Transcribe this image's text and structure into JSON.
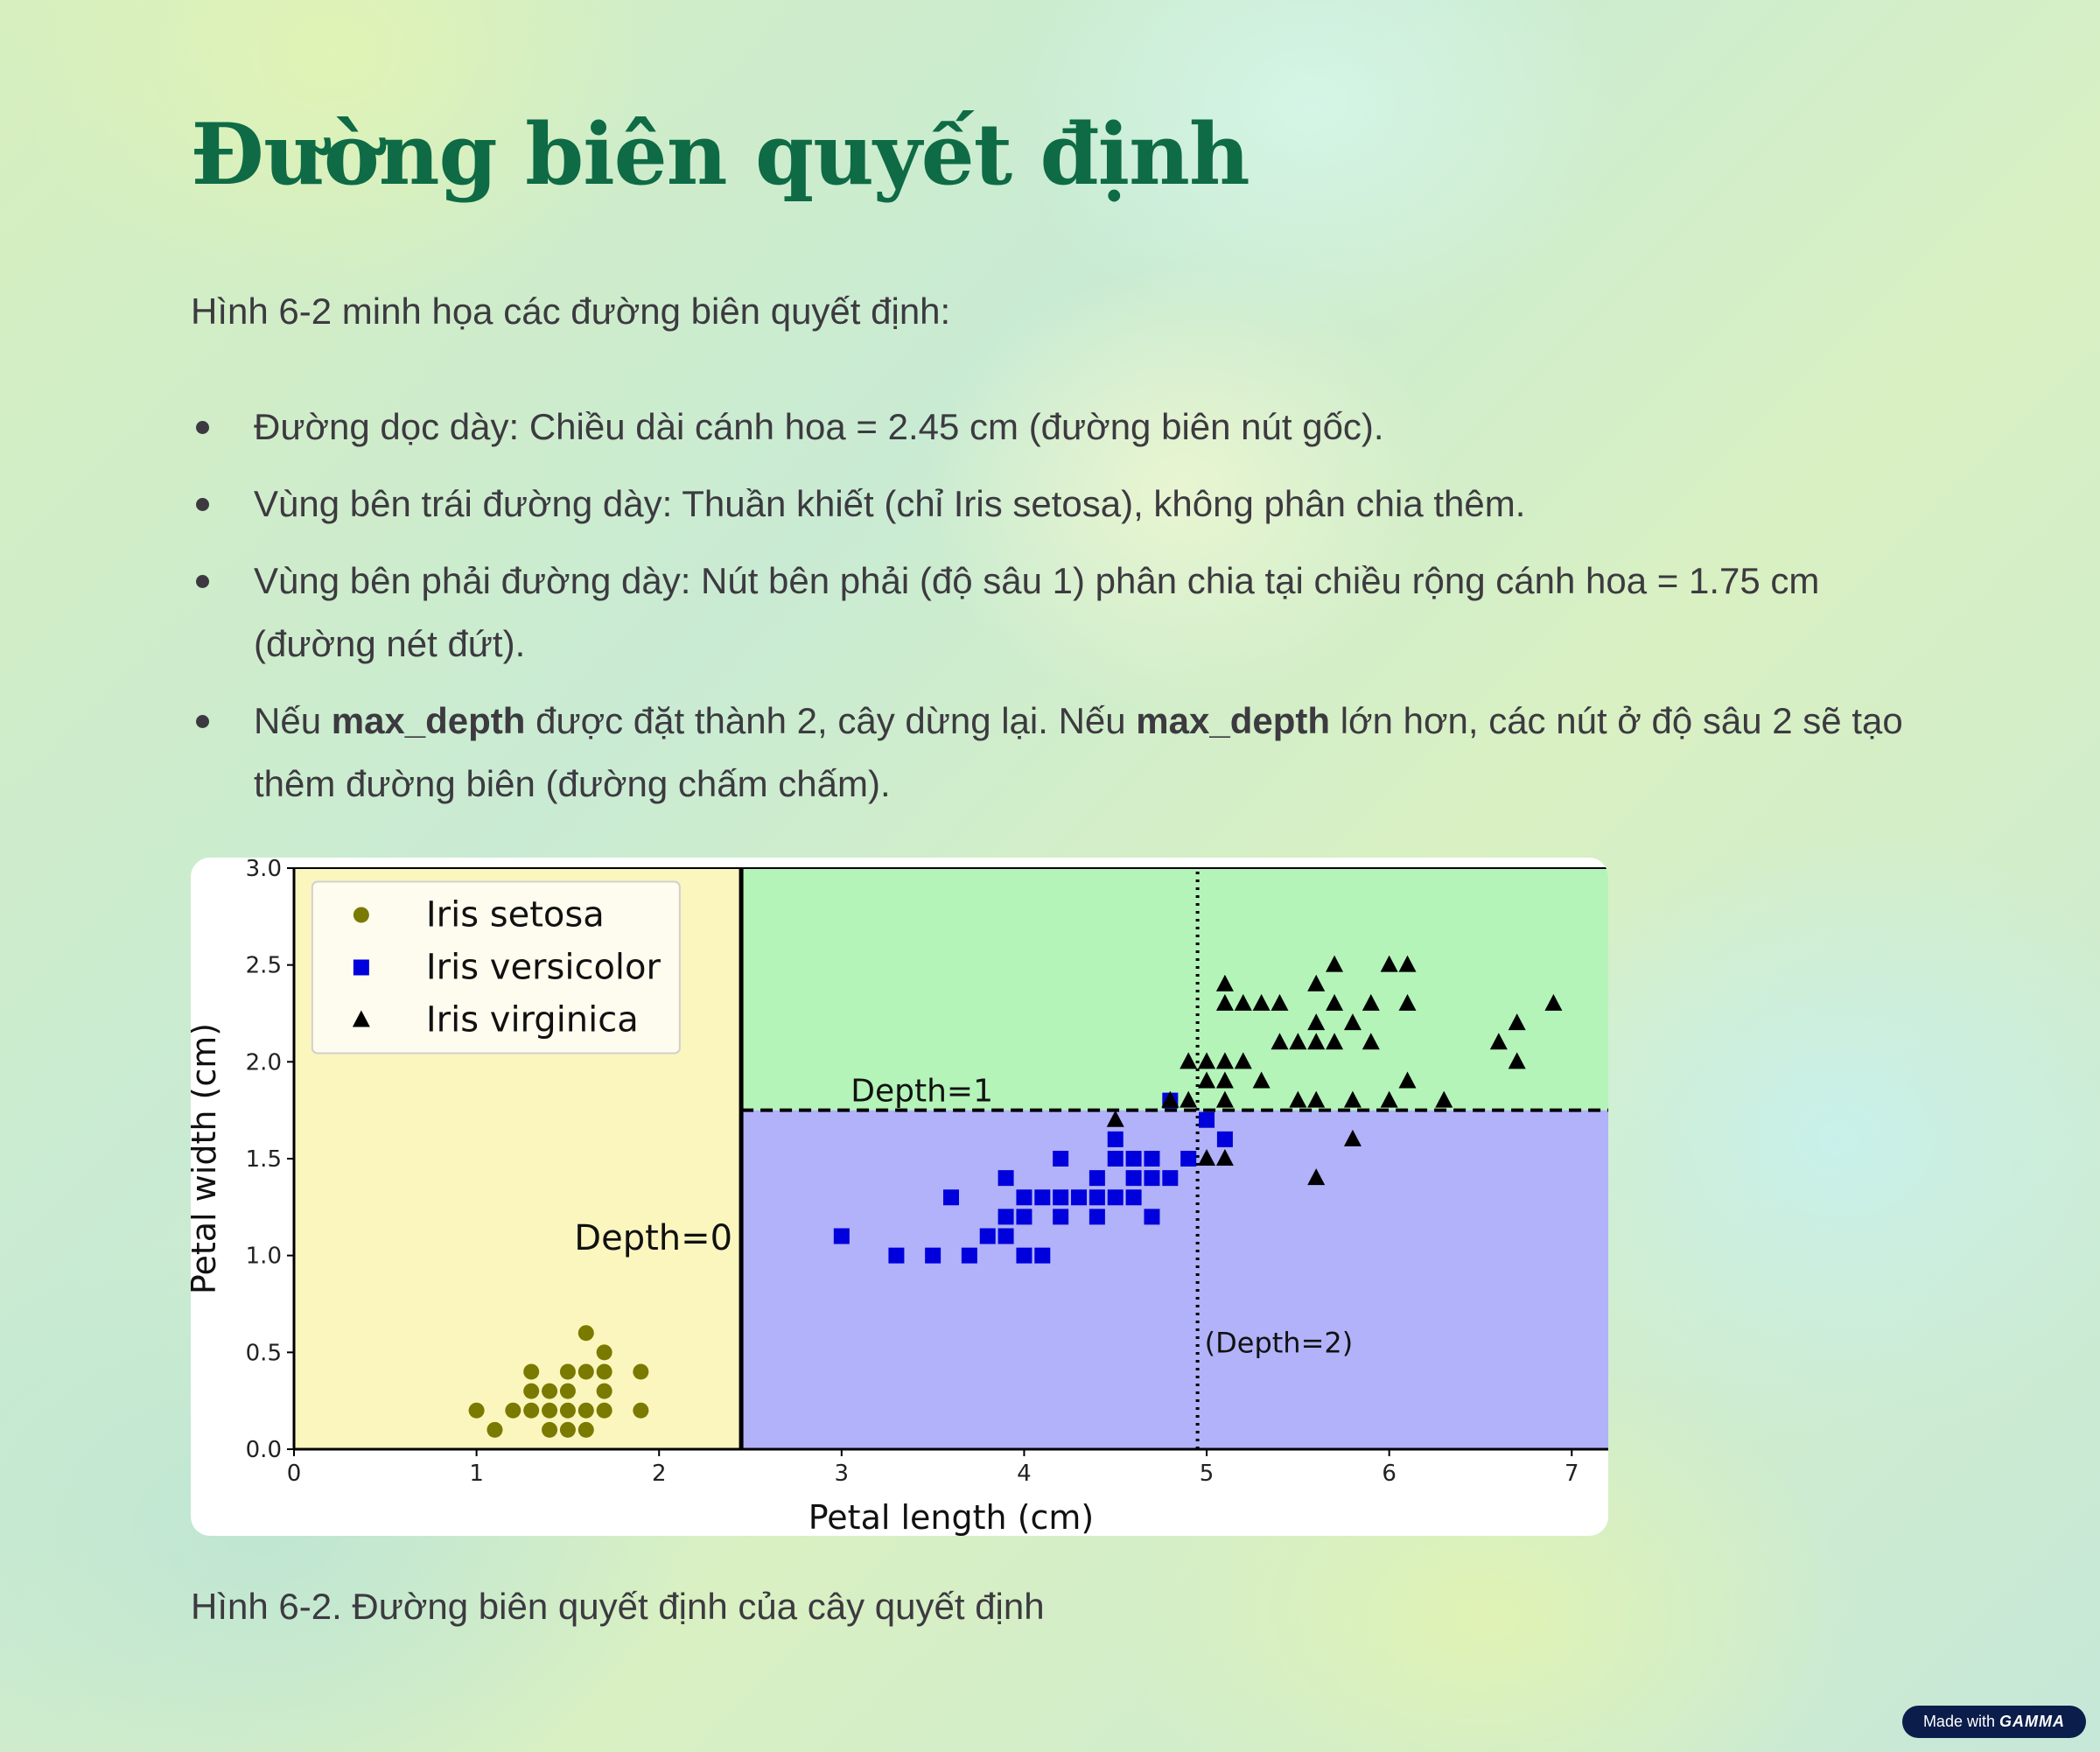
{
  "page": {
    "title": "Đường biên quyết định",
    "intro": "Hình 6-2 minh họa các đường biên quyết định:",
    "bullets": {
      "b1": "Đường dọc dày: Chiều dài cánh hoa = 2.45 cm (đường biên nút gốc).",
      "b2": "Vùng bên trái đường dày: Thuần khiết (chỉ Iris setosa), không phân chia thêm.",
      "b3": "Vùng bên phải đường dày: Nút bên phải (độ sâu 1) phân chia tại chiều rộng cánh hoa = 1.75 cm (đường nét đứt).",
      "b4_p1": "Nếu ",
      "b4_b1": "max_depth",
      "b4_p2": " được đặt thành 2, cây dừng lại. Nếu ",
      "b4_b2": "max_depth",
      "b4_p3": " lớn hơn, các nút ở độ sâu 2 sẽ tạo thêm đường biên (đường chấm chấm)."
    },
    "caption": "Hình 6-2. Đường biên quyết định của cây quyết định",
    "badge": {
      "prefix": "Made with",
      "brand": "GAMMA"
    }
  },
  "colors": {
    "title": "#0e6b45",
    "text": "#3c3a40",
    "region_setosa": "#fbf6be",
    "region_virginica": "#b4f4b9",
    "region_versicolor": "#b1b2f9",
    "setosa": "#7a7a00",
    "versicolor": "#0000dd",
    "virginica": "#000000"
  },
  "chart_data": {
    "type": "scatter",
    "xlabel": "Petal length (cm)",
    "ylabel": "Petal width (cm)",
    "xlim": [
      0,
      7.2
    ],
    "ylim": [
      0,
      3
    ],
    "xticks": [
      "0",
      "1",
      "2",
      "3",
      "4",
      "5",
      "6",
      "7"
    ],
    "yticks": [
      "0.0",
      "0.5",
      "1.0",
      "1.5",
      "2.0",
      "2.5",
      "3.0"
    ],
    "grid": false,
    "legend_position": "top-left",
    "series": [
      {
        "name": "Iris setosa",
        "marker": "circle",
        "points": [
          [
            1.0,
            0.2
          ],
          [
            1.1,
            0.1
          ],
          [
            1.2,
            0.2
          ],
          [
            1.3,
            0.2
          ],
          [
            1.3,
            0.3
          ],
          [
            1.3,
            0.4
          ],
          [
            1.4,
            0.2
          ],
          [
            1.4,
            0.3
          ],
          [
            1.4,
            0.1
          ],
          [
            1.5,
            0.2
          ],
          [
            1.5,
            0.3
          ],
          [
            1.5,
            0.4
          ],
          [
            1.5,
            0.1
          ],
          [
            1.6,
            0.2
          ],
          [
            1.6,
            0.4
          ],
          [
            1.6,
            0.6
          ],
          [
            1.6,
            0.1
          ],
          [
            1.7,
            0.2
          ],
          [
            1.7,
            0.3
          ],
          [
            1.7,
            0.4
          ],
          [
            1.7,
            0.5
          ],
          [
            1.9,
            0.2
          ],
          [
            1.9,
            0.4
          ]
        ]
      },
      {
        "name": "Iris versicolor",
        "marker": "square",
        "points": [
          [
            3.0,
            1.1
          ],
          [
            3.3,
            1.0
          ],
          [
            3.5,
            1.0
          ],
          [
            3.6,
            1.3
          ],
          [
            3.7,
            1.0
          ],
          [
            3.8,
            1.1
          ],
          [
            3.9,
            1.1
          ],
          [
            3.9,
            1.2
          ],
          [
            3.9,
            1.4
          ],
          [
            4.0,
            1.0
          ],
          [
            4.0,
            1.2
          ],
          [
            4.0,
            1.3
          ],
          [
            4.1,
            1.0
          ],
          [
            4.1,
            1.3
          ],
          [
            4.2,
            1.2
          ],
          [
            4.2,
            1.3
          ],
          [
            4.2,
            1.5
          ],
          [
            4.3,
            1.3
          ],
          [
            4.4,
            1.2
          ],
          [
            4.4,
            1.3
          ],
          [
            4.4,
            1.4
          ],
          [
            4.5,
            1.3
          ],
          [
            4.5,
            1.5
          ],
          [
            4.5,
            1.6
          ],
          [
            4.6,
            1.3
          ],
          [
            4.6,
            1.4
          ],
          [
            4.6,
            1.5
          ],
          [
            4.7,
            1.2
          ],
          [
            4.7,
            1.4
          ],
          [
            4.7,
            1.5
          ],
          [
            4.8,
            1.4
          ],
          [
            4.8,
            1.8
          ],
          [
            4.9,
            1.5
          ],
          [
            5.0,
            1.7
          ],
          [
            5.1,
            1.6
          ]
        ]
      },
      {
        "name": "Iris virginica",
        "marker": "triangle",
        "points": [
          [
            4.5,
            1.7
          ],
          [
            4.8,
            1.8
          ],
          [
            4.9,
            1.8
          ],
          [
            4.9,
            2.0
          ],
          [
            5.0,
            1.5
          ],
          [
            5.0,
            1.9
          ],
          [
            5.0,
            2.0
          ],
          [
            5.1,
            1.5
          ],
          [
            5.1,
            1.8
          ],
          [
            5.1,
            1.9
          ],
          [
            5.1,
            2.0
          ],
          [
            5.1,
            2.3
          ],
          [
            5.1,
            2.4
          ],
          [
            5.2,
            2.0
          ],
          [
            5.2,
            2.3
          ],
          [
            5.3,
            1.9
          ],
          [
            5.3,
            2.3
          ],
          [
            5.4,
            2.3
          ],
          [
            5.4,
            2.1
          ],
          [
            5.5,
            2.1
          ],
          [
            5.5,
            1.8
          ],
          [
            5.6,
            1.4
          ],
          [
            5.6,
            1.8
          ],
          [
            5.6,
            2.1
          ],
          [
            5.6,
            2.2
          ],
          [
            5.6,
            2.4
          ],
          [
            5.7,
            2.1
          ],
          [
            5.7,
            2.3
          ],
          [
            5.7,
            2.5
          ],
          [
            5.8,
            1.6
          ],
          [
            5.8,
            1.8
          ],
          [
            5.8,
            2.2
          ],
          [
            5.9,
            2.1
          ],
          [
            5.9,
            2.3
          ],
          [
            6.0,
            1.8
          ],
          [
            6.0,
            2.5
          ],
          [
            6.1,
            1.9
          ],
          [
            6.1,
            2.3
          ],
          [
            6.1,
            2.5
          ],
          [
            6.3,
            1.8
          ],
          [
            6.6,
            2.1
          ],
          [
            6.7,
            2.0
          ],
          [
            6.7,
            2.2
          ],
          [
            6.9,
            2.3
          ]
        ]
      }
    ],
    "boundaries": [
      {
        "label": "Depth=0",
        "orientation": "vertical",
        "value": 2.45,
        "style": "solid"
      },
      {
        "label": "Depth=1",
        "orientation": "horizontal",
        "value": 1.75,
        "xmin": 2.45,
        "style": "dashed"
      },
      {
        "label": "(Depth=2)",
        "orientation": "vertical",
        "value": 4.95,
        "style": "dotted"
      }
    ]
  }
}
